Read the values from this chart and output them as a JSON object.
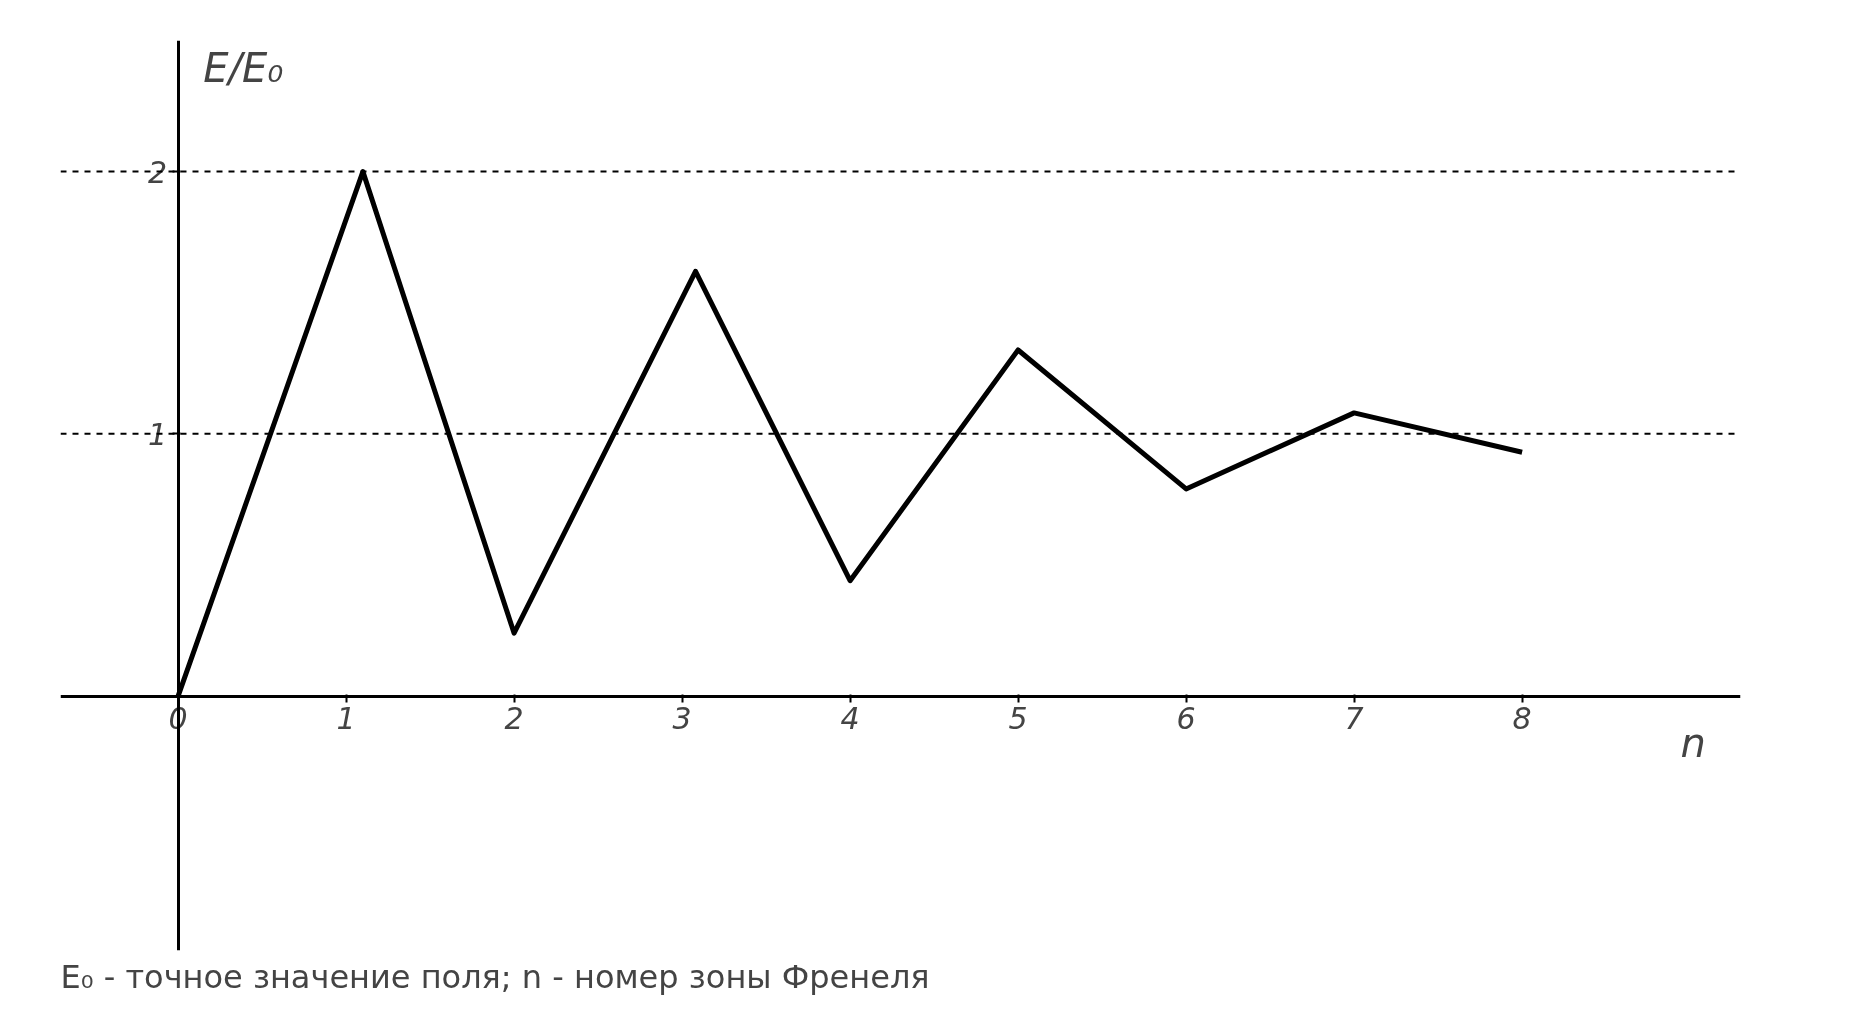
{
  "chart_data": {
    "type": "line",
    "xlabel": "n",
    "ylabel": "E/E₀",
    "x": [
      0,
      1.1,
      2.0,
      3.08,
      4.0,
      5.0,
      6.0,
      7.0,
      8.0
    ],
    "series": [
      {
        "color": "#000000",
        "values": [
          0,
          2.0,
          0.24,
          1.62,
          0.44,
          1.32,
          0.79,
          1.08,
          0.93
        ]
      }
    ],
    "xlim": [
      -0.7,
      9.3
    ],
    "ylim": [
      -0.97,
      2.5
    ],
    "xticks": [
      0,
      1,
      2,
      3,
      4,
      5,
      6,
      7,
      8
    ],
    "yticks": [
      1,
      2
    ],
    "ref_lines": [
      {
        "axis": "y",
        "value": 1,
        "line_style": "dashed",
        "color": "#000000"
      },
      {
        "axis": "y",
        "value": 2,
        "line_style": "dashed",
        "color": "#000000"
      }
    ],
    "grid": false,
    "marker": "none",
    "line_style": "solid",
    "annotations": [
      "E₀ - точное значение поля; n - номер зоны Френеля"
    ]
  }
}
